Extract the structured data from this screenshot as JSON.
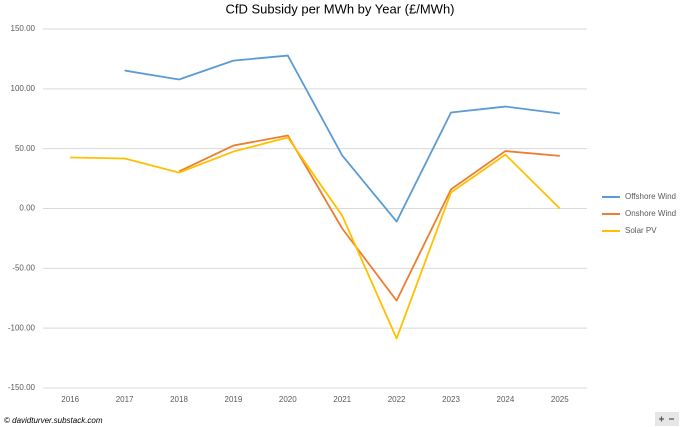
{
  "chart_data": {
    "type": "line",
    "title": "CfD Subsidy per MWh by Year (£/MWh)",
    "categories": [
      "2016",
      "2017",
      "2018",
      "2019",
      "2020",
      "2021",
      "2022",
      "2023",
      "2024",
      "2025"
    ],
    "series": [
      {
        "name": "Offshore Wind",
        "color": "#5b9bd5",
        "values": [
          null,
          115.3,
          107.8,
          123.6,
          127.8,
          44.3,
          -10.9,
          80.2,
          85.2,
          79.4
        ]
      },
      {
        "name": "Onshore Wind",
        "color": "#ed7d31",
        "values": [
          null,
          null,
          31,
          52.6,
          61,
          -16.7,
          -77,
          16,
          48,
          44
        ]
      },
      {
        "name": "Solar PV",
        "color": "#ffc000",
        "values": [
          42.6,
          41.8,
          30,
          47.6,
          59.3,
          -6,
          -108.6,
          13.4,
          45,
          0
        ]
      }
    ],
    "ylim": [
      -150,
      150
    ],
    "yticks": [
      {
        "value": -150,
        "label": "-150.00"
      },
      {
        "value": -100,
        "label": "-100.00"
      },
      {
        "value": -50,
        "label": "-50.00"
      },
      {
        "value": 0,
        "label": "0.00"
      },
      {
        "value": 50,
        "label": "50.00"
      },
      {
        "value": 100,
        "label": "100.00"
      },
      {
        "value": 150,
        "label": "150.00"
      }
    ],
    "grid": true,
    "legend": "right",
    "source": "© davidturver.substack.com"
  }
}
